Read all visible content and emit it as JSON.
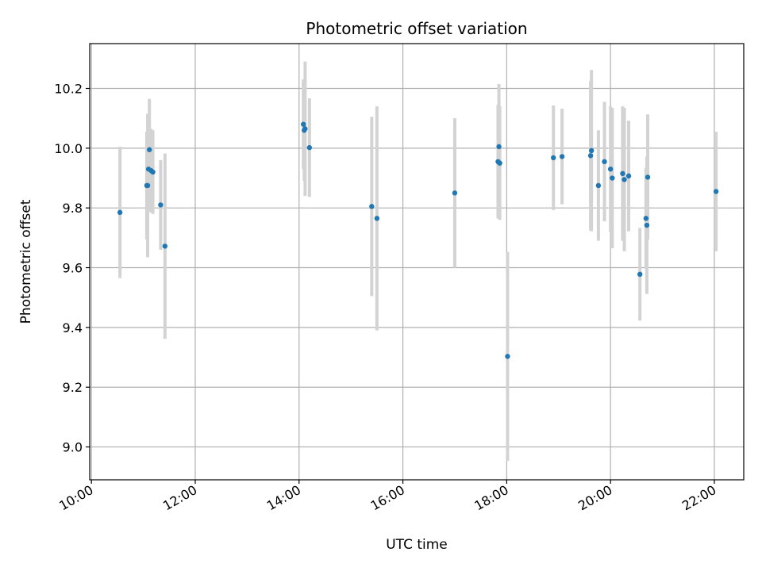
{
  "chart_data": {
    "type": "scatter",
    "title": "Photometric offset variation",
    "xlabel": "UTC time",
    "ylabel": "Photometric offset",
    "x_ticks": [
      "10:00",
      "12:00",
      "14:00",
      "16:00",
      "18:00",
      "20:00",
      "22:00"
    ],
    "y_ticks": [
      "9.0",
      "9.2",
      "9.4",
      "9.6",
      "9.8",
      "10.0",
      "10.2"
    ],
    "xlim": [
      "09:58",
      "22:34"
    ],
    "ylim": [
      8.89,
      10.35
    ],
    "grid": true,
    "marker_color": "#1f77b4",
    "errorbar_color": "#d3d3d3",
    "points": [
      {
        "time": "10:33",
        "y": 9.785,
        "err": 0.22
      },
      {
        "time": "11:04",
        "y": 9.875,
        "err": 0.18
      },
      {
        "time": "11:05",
        "y": 9.875,
        "err": 0.24
      },
      {
        "time": "11:06",
        "y": 9.93,
        "err": 0.14
      },
      {
        "time": "11:07",
        "y": 9.995,
        "err": 0.17
      },
      {
        "time": "11:09",
        "y": 9.925,
        "err": 0.14
      },
      {
        "time": "11:11",
        "y": 9.92,
        "err": 0.14
      },
      {
        "time": "11:20",
        "y": 9.81,
        "err": 0.15
      },
      {
        "time": "11:25",
        "y": 9.672,
        "err": 0.31
      },
      {
        "time": "14:05",
        "y": 10.08,
        "err": 0.15
      },
      {
        "time": "14:06",
        "y": 10.06,
        "err": 0.17
      },
      {
        "time": "14:07",
        "y": 10.065,
        "err": 0.225
      },
      {
        "time": "14:12",
        "y": 10.002,
        "err": 0.165
      },
      {
        "time": "15:24",
        "y": 9.805,
        "err": 0.3
      },
      {
        "time": "15:30",
        "y": 9.765,
        "err": 0.375
      },
      {
        "time": "17:00",
        "y": 9.85,
        "err": 0.25
      },
      {
        "time": "17:50",
        "y": 9.955,
        "err": 0.19
      },
      {
        "time": "17:51",
        "y": 10.005,
        "err": 0.21
      },
      {
        "time": "17:52",
        "y": 9.95,
        "err": 0.19
      },
      {
        "time": "18:01",
        "y": 9.303,
        "err": 0.35
      },
      {
        "time": "18:54",
        "y": 9.968,
        "err": 0.175
      },
      {
        "time": "19:04",
        "y": 9.972,
        "err": 0.16
      },
      {
        "time": "19:37",
        "y": 9.975,
        "err": 0.25
      },
      {
        "time": "19:38",
        "y": 9.992,
        "err": 0.27
      },
      {
        "time": "19:46",
        "y": 9.875,
        "err": 0.185
      },
      {
        "time": "19:53",
        "y": 9.955,
        "err": 0.2
      },
      {
        "time": "20:00",
        "y": 9.93,
        "err": 0.21
      },
      {
        "time": "20:02",
        "y": 9.9,
        "err": 0.235
      },
      {
        "time": "20:14",
        "y": 9.915,
        "err": 0.225
      },
      {
        "time": "20:16",
        "y": 9.895,
        "err": 0.24
      },
      {
        "time": "20:21",
        "y": 9.907,
        "err": 0.185
      },
      {
        "time": "20:34",
        "y": 9.578,
        "err": 0.155
      },
      {
        "time": "20:41",
        "y": 9.765,
        "err": 0.17
      },
      {
        "time": "20:42",
        "y": 9.742,
        "err": 0.23
      },
      {
        "time": "20:43",
        "y": 9.903,
        "err": 0.21
      },
      {
        "time": "22:02",
        "y": 9.855,
        "err": 0.2
      }
    ]
  }
}
